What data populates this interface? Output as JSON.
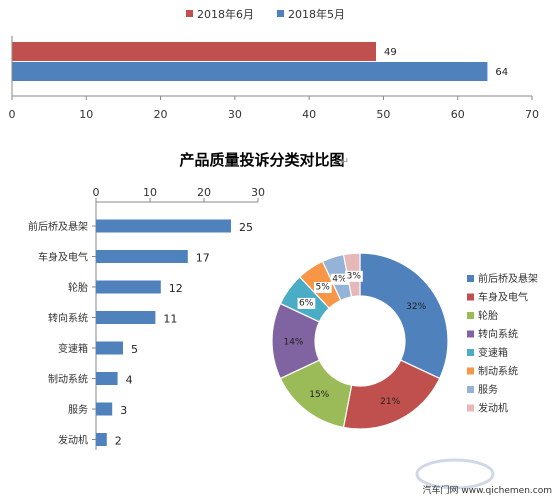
{
  "chart_data": [
    {
      "type": "bar",
      "orientation": "horizontal",
      "series": [
        {
          "name": "2018年6月",
          "color": "#C0504D",
          "values": [
            49
          ]
        },
        {
          "name": "2018年5月",
          "color": "#4F81BD",
          "values": [
            64
          ]
        }
      ],
      "xlim": [
        0,
        70
      ],
      "xticks": [
        "0",
        "10",
        "20",
        "30",
        "40",
        "50",
        "60",
        "70"
      ],
      "legend_position": "top",
      "grid": false
    },
    {
      "type": "bar",
      "orientation": "horizontal",
      "title": "产品质量投诉分类对比图",
      "categories": [
        "前后桥及悬架",
        "车身及电气",
        "轮胎",
        "转向系统",
        "变速箱",
        "制动系统",
        "服务",
        "发动机"
      ],
      "values": [
        25,
        17,
        12,
        11,
        5,
        4,
        3,
        2
      ],
      "xlim": [
        0,
        30
      ],
      "xticks": [
        "0",
        "10",
        "20",
        "30"
      ],
      "axis_position": "top",
      "color": "#4F81BD",
      "grid": false
    },
    {
      "type": "pie",
      "donut": true,
      "categories": [
        "前后桥及悬架",
        "车身及电气",
        "轮胎",
        "转向系统",
        "变速箱",
        "制动系统",
        "服务",
        "发动机"
      ],
      "values": [
        32,
        21,
        15,
        14,
        6,
        5,
        4,
        3
      ],
      "labels": [
        "32%",
        "21%",
        "15%",
        "14%",
        "6%",
        "5%",
        "4%",
        "3%"
      ],
      "colors": [
        "#4F81BD",
        "#C0504D",
        "#9BBB59",
        "#8064A2",
        "#4BACC6",
        "#F79646",
        "#95B3D7",
        "#E6B9B8"
      ],
      "legend_position": "right"
    }
  ],
  "watermark": {
    "text": "汽车门网 www.qichemen.com"
  }
}
